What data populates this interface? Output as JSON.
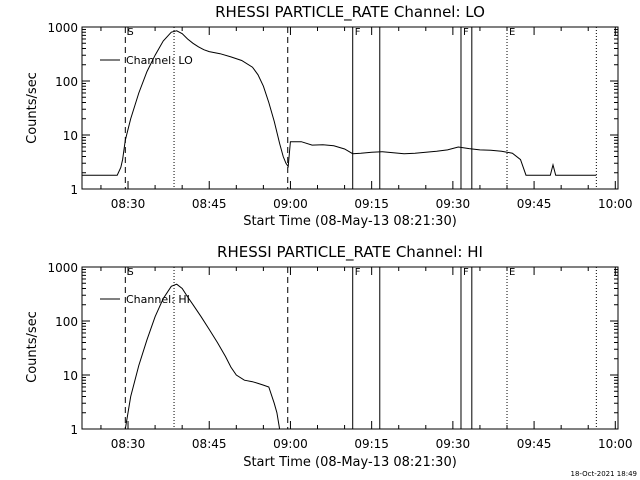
{
  "footer": {
    "timestamp": "18-Oct-2021 18:49"
  },
  "chart_data": [
    {
      "type": "line",
      "title": "RHESSI PARTICLE_RATE Channel: LO",
      "xlabel": "Start Time (08-May-13 08:21:30)",
      "ylabel": "Counts/sec",
      "yscale": "log",
      "xlim": [
        "08:21:30",
        "10:00:30"
      ],
      "ylim": [
        1,
        1000
      ],
      "x_ticks": [
        "08:30",
        "08:45",
        "09:00",
        "09:15",
        "09:30",
        "09:45",
        "10:00"
      ],
      "y_ticks": [
        "1",
        "10",
        "100",
        "1000"
      ],
      "legend": {
        "label": "Channel: LO",
        "position": "top-left"
      },
      "markers": [
        {
          "time": "08:29:30",
          "style": "dashed",
          "label": "S"
        },
        {
          "time": "08:38:30",
          "style": "dotted",
          "label": ""
        },
        {
          "time": "08:59:30",
          "style": "dashed",
          "label": ""
        },
        {
          "time": "09:11:30",
          "style": "solid",
          "label": "F"
        },
        {
          "time": "09:16:30",
          "style": "solid",
          "label": ""
        },
        {
          "time": "09:31:30",
          "style": "solid",
          "label": "F"
        },
        {
          "time": "09:33:30",
          "style": "solid",
          "label": ""
        },
        {
          "time": "09:40:00",
          "style": "dotted",
          "label": "E"
        },
        {
          "time": "09:56:30",
          "style": "dotted",
          "label": ""
        }
      ],
      "series": [
        {
          "x": [
            "08:21:30",
            "08:28:00",
            "08:28:40",
            "08:29:00",
            "08:29:30",
            "08:30:30",
            "08:32:00",
            "08:33:30",
            "08:35:00",
            "08:36:30",
            "08:38:00",
            "08:39:00",
            "08:40:00",
            "08:41:00",
            "08:42:00",
            "08:43:00",
            "08:44:00",
            "08:45:00",
            "08:47:00",
            "08:49:00",
            "08:51:00",
            "08:53:00",
            "08:54:00",
            "08:55:00",
            "08:56:00",
            "08:57:00",
            "08:58:00",
            "08:58:40",
            "08:59:10",
            "08:59:35",
            "09:00:00",
            "09:02:00",
            "09:04:00",
            "09:06:00",
            "09:08:00",
            "09:10:00",
            "09:11:30",
            "09:13:00",
            "09:15:00",
            "09:17:00",
            "09:19:00",
            "09:21:00",
            "09:23:00",
            "09:25:00",
            "09:27:00",
            "09:29:00",
            "09:31:00",
            "09:33:00",
            "09:35:00",
            "09:37:00",
            "09:39:00",
            "09:41:00",
            "09:42:30",
            "09:43:30",
            "09:44:30",
            "09:45:30",
            "09:47:00",
            "09:48:00",
            "09:48:30",
            "09:49:00",
            "09:56:30"
          ],
          "y": [
            1.8,
            1.8,
            2.5,
            3.5,
            8,
            20,
            60,
            150,
            300,
            550,
            800,
            850,
            750,
            600,
            500,
            430,
            380,
            350,
            320,
            280,
            240,
            180,
            130,
            80,
            40,
            18,
            7,
            4,
            3,
            2.6,
            7.5,
            7.5,
            6.5,
            6.6,
            6.3,
            5.5,
            4.5,
            4.6,
            4.8,
            4.9,
            4.7,
            4.5,
            4.6,
            4.8,
            5,
            5.3,
            6,
            5.6,
            5.3,
            5.2,
            5,
            4.6,
            3.5,
            1.8,
            1.8,
            1.8,
            1.8,
            1.8,
            2.8,
            1.8,
            1.8
          ]
        }
      ]
    },
    {
      "type": "line",
      "title": "RHESSI PARTICLE_RATE Channel: HI",
      "xlabel": "Start Time (08-May-13 08:21:30)",
      "ylabel": "Counts/sec",
      "yscale": "log",
      "xlim": [
        "08:21:30",
        "10:00:30"
      ],
      "ylim": [
        1,
        1000
      ],
      "x_ticks": [
        "08:30",
        "08:45",
        "09:00",
        "09:15",
        "09:30",
        "09:45",
        "10:00"
      ],
      "y_ticks": [
        "1",
        "10",
        "100",
        "1000"
      ],
      "legend": {
        "label": "Channel: HI",
        "position": "top-left"
      },
      "markers": [
        {
          "time": "08:29:30",
          "style": "dashed",
          "label": "S"
        },
        {
          "time": "08:38:30",
          "style": "dotted",
          "label": ""
        },
        {
          "time": "08:59:30",
          "style": "dashed",
          "label": ""
        },
        {
          "time": "09:11:30",
          "style": "solid",
          "label": "F"
        },
        {
          "time": "09:16:30",
          "style": "solid",
          "label": ""
        },
        {
          "time": "09:31:30",
          "style": "solid",
          "label": "F"
        },
        {
          "time": "09:33:30",
          "style": "solid",
          "label": ""
        },
        {
          "time": "09:40:00",
          "style": "dotted",
          "label": "E"
        },
        {
          "time": "09:56:30",
          "style": "dotted",
          "label": ""
        }
      ],
      "series": [
        {
          "x": [
            "08:29:30",
            "08:30:30",
            "08:32:00",
            "08:33:30",
            "08:35:00",
            "08:36:30",
            "08:38:00",
            "08:39:00",
            "08:40:00",
            "08:41:00",
            "08:42:00",
            "08:43:30",
            "08:45:00",
            "08:46:30",
            "08:48:00",
            "08:49:00",
            "08:50:00",
            "08:51:30",
            "08:53:00",
            "08:54:00",
            "08:55:00",
            "08:56:00",
            "08:57:00",
            "08:57:30",
            "08:58:00"
          ],
          "y": [
            1,
            4,
            15,
            45,
            120,
            260,
            440,
            480,
            400,
            280,
            200,
            120,
            70,
            40,
            22,
            14,
            10,
            8,
            7.5,
            7,
            6.5,
            6,
            3,
            2,
            1
          ]
        }
      ]
    }
  ]
}
